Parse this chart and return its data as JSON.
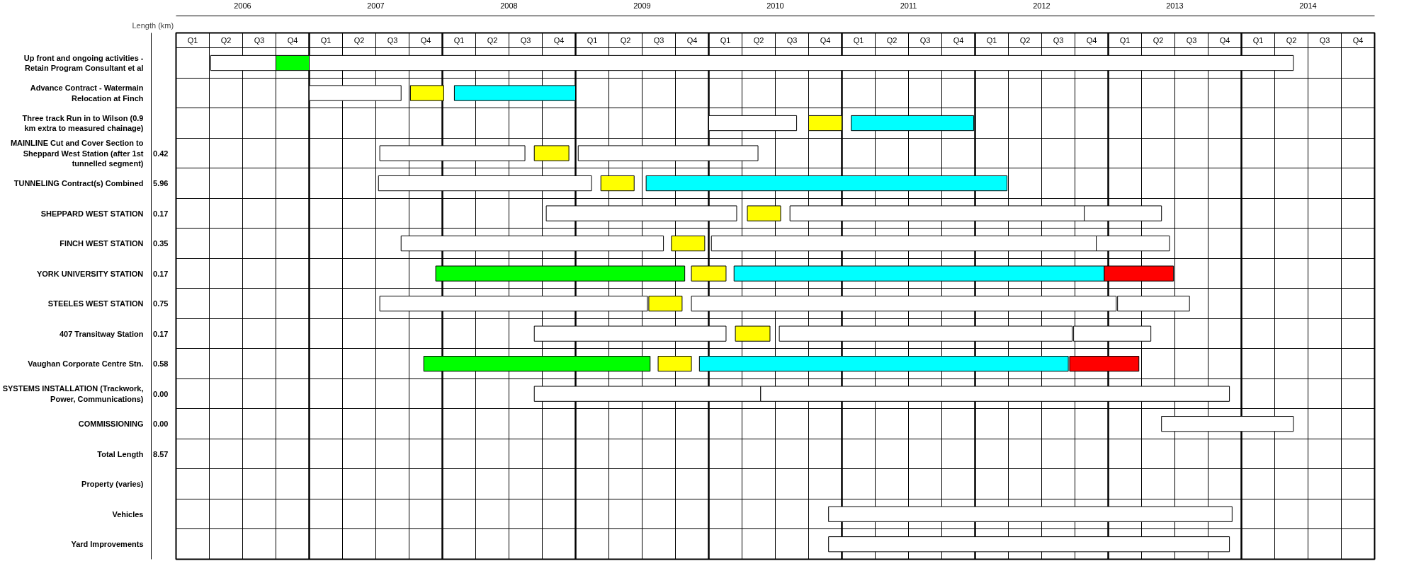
{
  "chart_data": {
    "type": "bar",
    "orientation": "horizontal",
    "categories": [
      "Up front and ongoing activities - Retain Program Consultant et al",
      "Advance Contract - Watermain Relocation at Finch",
      "Three track Run in to Wilson (0.9 km extra to measured chainage)",
      "MAINLINE Cut and Cover Section to Sheppard West Station (after 1st tunnelled segment)",
      "TUNNELING Contract(s) Combined",
      "SHEPPARD WEST STATION",
      "FINCH WEST STATION",
      "YORK UNIVERSITY STATION",
      "STEELES WEST STATION",
      "407 Transitway Station",
      "Vaughan Corporate Centre Stn.",
      "SYSTEMS INSTALLATION (Trackwork, Power, Communications)",
      "COMMISSIONING",
      "Total Length",
      "Property (varies)",
      "Vehicles",
      "Yard Improvements"
    ],
    "y2label": "Length (km)",
    "y2_categories": [
      null,
      null,
      null,
      "0.42",
      "5.96",
      "0.17",
      "0.35",
      "0.17",
      "0.75",
      "0.17",
      "0.58",
      "0.00",
      "0.00",
      "8.57",
      null,
      null,
      null
    ],
    "series": [
      {
        "base": [
          2005.76,
          2006.5,
          2009.5,
          2007.03,
          2007.02,
          2008.28,
          2007.19,
          2007.45,
          2007.03,
          2008.19,
          2007.36,
          2008.19,
          2012.9,
          null,
          null,
          2010.4,
          2010.4
        ],
        "values": [
          0.49,
          0.69,
          0.66,
          1.09,
          1.6,
          1.43,
          1.97,
          1.87,
          2.01,
          1.44,
          1.7,
          1.7,
          0.99,
          null,
          null,
          3.03,
          3.01
        ],
        "colors": [
          "#ffffff",
          "#ffffff",
          "#ffffff",
          "#ffffff",
          "#ffffff",
          "#ffffff",
          "#ffffff",
          "#00ff00",
          "#ffffff",
          "#ffffff",
          "#00ff00",
          "#ffffff",
          "#ffffff",
          null,
          null,
          "#ffffff",
          "#ffffff"
        ]
      },
      {
        "base": [
          2006.25,
          2007.26,
          2010.25,
          2008.19,
          2008.69,
          2009.79,
          2009.22,
          2009.37,
          2009.05,
          2009.7,
          2009.12,
          2009.89,
          null,
          null,
          null,
          null,
          null
        ],
        "values": [
          0.25,
          0.25,
          0.25,
          0.26,
          0.25,
          0.25,
          0.25,
          0.26,
          0.25,
          0.26,
          0.25,
          3.52,
          null,
          null,
          null,
          null,
          null
        ],
        "colors": [
          "#00ff00",
          "#ffff00",
          "#ffff00",
          "#ffff00",
          "#ffff00",
          "#ffff00",
          "#ffff00",
          "#ffff00",
          "#ffff00",
          "#ffff00",
          "#ffff00",
          "#ffffff",
          null,
          null,
          null,
          null,
          null
        ]
      },
      {
        "base": [
          2006.5,
          2007.59,
          2010.57,
          2008.52,
          2009.03,
          2010.11,
          2009.52,
          2009.69,
          2009.37,
          2010.03,
          2009.43,
          null,
          null,
          null,
          null,
          null,
          null
        ],
        "values": [
          7.39,
          0.91,
          0.92,
          1.35,
          2.71,
          2.21,
          2.89,
          2.78,
          3.19,
          2.2,
          2.77,
          null,
          null,
          null,
          null,
          null,
          null
        ],
        "colors": [
          "#ffffff",
          "#00ffff",
          "#00ffff",
          "#ffffff",
          "#00ffff",
          "#ffffff",
          "#ffffff",
          "#00ffff",
          "#ffffff",
          "#ffffff",
          "#00ffff",
          null,
          null,
          null,
          null,
          null,
          null
        ]
      },
      {
        "base": [
          null,
          null,
          null,
          null,
          null,
          2012.32,
          2012.41,
          2012.47,
          2012.57,
          2012.24,
          2012.21,
          null,
          null,
          null,
          null,
          null,
          null
        ],
        "values": [
          null,
          null,
          null,
          null,
          null,
          0.58,
          0.55,
          0.52,
          0.54,
          0.58,
          0.52,
          null,
          null,
          null,
          null,
          null,
          null
        ],
        "colors": [
          null,
          null,
          null,
          null,
          null,
          "#ffffff",
          "#ffffff",
          "#ff0000",
          "#ffffff",
          "#ffffff",
          "#ff0000",
          null,
          null,
          null,
          null,
          null,
          null
        ]
      }
    ],
    "xlim": [
      2005.5,
      2014.5
    ],
    "xticks": [
      2006,
      2007,
      2008,
      2009,
      2010,
      2011,
      2012,
      2013,
      2014,
      {
        "value": 2005.5,
        "label": null
      },
      {
        "value": 2005.75,
        "label": null
      },
      {
        "value": 2006,
        "label": null
      },
      {
        "value": 2006.25,
        "label": null
      },
      {
        "value": 2006.5,
        "label": null
      },
      {
        "value": 2006.75,
        "label": null
      },
      {
        "value": 2007,
        "label": null
      },
      {
        "value": 2007.25,
        "label": null
      },
      {
        "value": 2007.5,
        "label": null
      },
      {
        "value": 2007.75,
        "label": null
      },
      {
        "value": 2008,
        "label": null
      },
      {
        "value": 2008.25,
        "label": null
      },
      {
        "value": 2008.5,
        "label": null
      },
      {
        "value": 2008.75,
        "label": null
      },
      {
        "value": 2009,
        "label": null
      },
      {
        "value": 2009.25,
        "label": null
      },
      {
        "value": 2009.5,
        "label": null
      },
      {
        "value": 2009.75,
        "label": null
      },
      {
        "value": 2010,
        "label": null
      },
      {
        "value": 2010.25,
        "label": null
      },
      {
        "value": 2010.5,
        "label": null
      },
      {
        "value": 2010.75,
        "label": null
      },
      {
        "value": 2011,
        "label": null
      },
      {
        "value": 2011.25,
        "label": null
      },
      {
        "value": 2011.5,
        "label": null
      },
      {
        "value": 2011.75,
        "label": null
      },
      {
        "value": 2012,
        "label": null
      },
      {
        "value": 2012.25,
        "label": null
      },
      {
        "value": 2012.5,
        "label": null
      },
      {
        "value": 2012.75,
        "label": null
      },
      {
        "value": 2013,
        "label": null
      },
      {
        "value": 2013.25,
        "label": null
      },
      {
        "value": 2013.5,
        "label": null
      },
      {
        "value": 2013.75,
        "label": null
      },
      {
        "value": 2014,
        "label": null
      },
      {
        "value": 2014.5,
        "label": null
      },
      {
        "value": 2014.25,
        "label": null
      }
    ],
    "annotations": [
      "Q1",
      "Q2",
      "Q3",
      "Q4",
      "Q1",
      "Q2",
      "Q3",
      "Q4",
      "Q1",
      "Q2",
      "Q3",
      "Q4",
      "Q1",
      "Q2",
      "Q3",
      "Q4",
      "Q1",
      "Q2",
      "Q3",
      "Q4",
      "Q1",
      "Q2",
      "Q3",
      "Q4",
      "Q1",
      "Q2",
      "Q3",
      "Q4",
      "Q1",
      "Q2",
      "Q3",
      "Q4",
      "Q1",
      "Q2",
      "Q3",
      "Q4"
    ],
    "grid": true
  }
}
